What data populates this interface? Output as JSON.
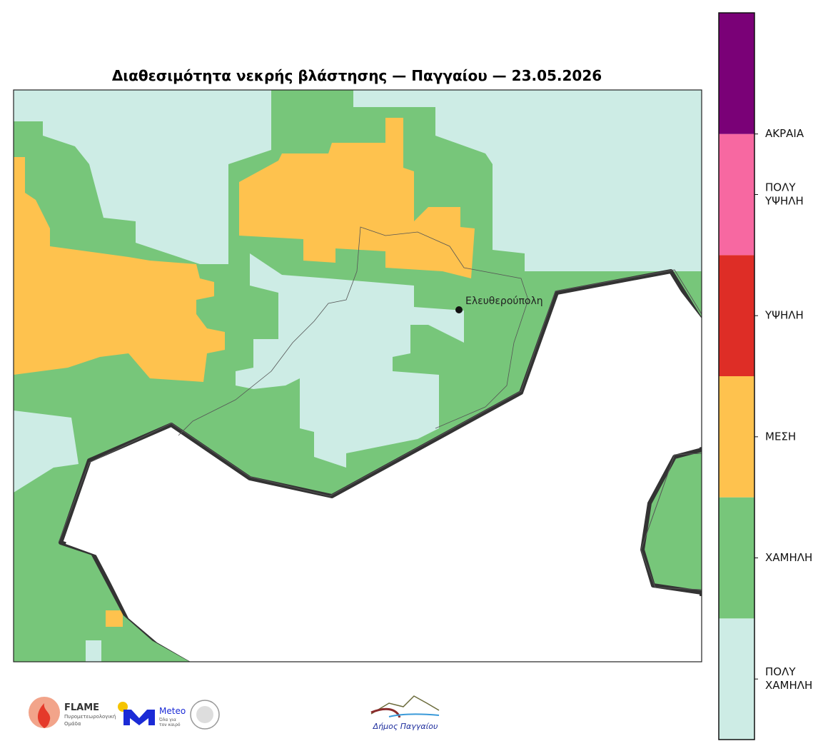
{
  "header": {
    "title": "Διαθεσιμότητα νεκρής βλάστησης — Παγγαίου — 23.05.2026"
  },
  "map": {
    "place_label": "Ελευθερούπολη"
  },
  "colorbar": {
    "colors": [
      "#cdece5",
      "#77c67a",
      "#fec24e",
      "#de2d26",
      "#f768a1",
      "#7a0177"
    ],
    "labels": [
      [
        "ΠΟΛΥ",
        "ΧΑΜΗΛΗ"
      ],
      [
        "ΧΑΜΗΛΗ"
      ],
      [
        "ΜΕΣΗ"
      ],
      [
        "ΥΨΗΛΗ"
      ],
      [
        "ΠΟΛΥ",
        "ΥΨΗΛΗ"
      ],
      [
        "ΑΚΡΑΙΑ"
      ]
    ]
  },
  "footer": {
    "flame": {
      "name": "FLAME",
      "subtitle": [
        "Πυρομετεωρολογική",
        "Ομάδα"
      ]
    },
    "meteo": {
      "name": "Meteo",
      "subtitle": [
        "Όλα για",
        "τον καιρό"
      ]
    },
    "municipality": "Δήμος Παγγαίου"
  }
}
